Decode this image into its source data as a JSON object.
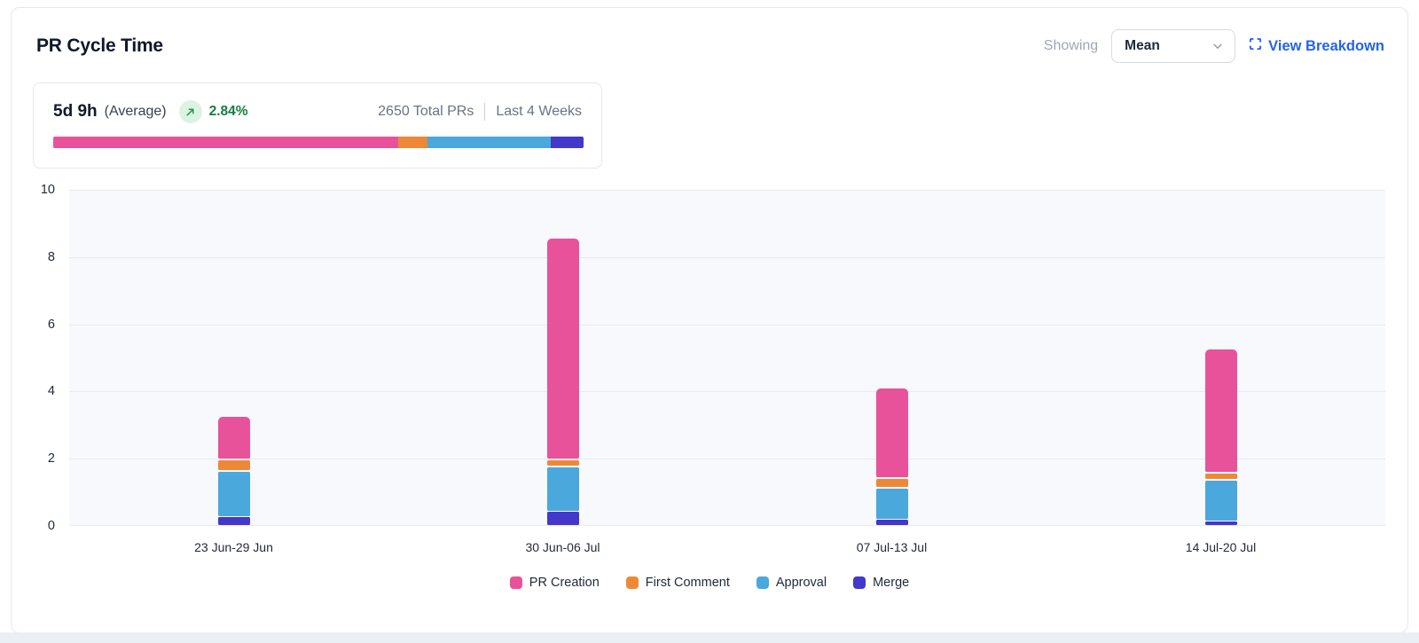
{
  "header": {
    "title": "PR Cycle Time",
    "showing_label": "Showing",
    "metric_select": {
      "value": "Mean"
    },
    "view_breakdown_label": "View Breakdown"
  },
  "summary": {
    "value": "5d 9h",
    "value_suffix": "(Average)",
    "trend_direction": "up",
    "trend_pct": "2.84%",
    "total_prs": "2650 Total PRs",
    "period": "Last 4 Weeks",
    "distribution_pct": [
      65,
      5.5,
      23.3,
      6.2
    ]
  },
  "colors": {
    "pr_creation": "#E8529A",
    "first_comment": "#ED8936",
    "approval": "#4AA8DC",
    "merge": "#4338CA",
    "trend_green": "#15803D",
    "trend_badge_bg": "#DCF3E2",
    "link_blue": "#2563EB",
    "plot_bg": "#F8F9FD",
    "gridline": "#E8EAF0"
  },
  "chart_data": {
    "type": "bar",
    "stacked": true,
    "title": "PR Cycle Time",
    "xlabel": "",
    "ylabel": "",
    "categories": [
      "23 Jun-29 Jun",
      "30 Jun-06 Jul",
      "07 Jul-13 Jul",
      "14 Jul-20 Jul"
    ],
    "series": [
      {
        "name": "PR Creation",
        "color": "#E8529A",
        "values": [
          1.3,
          6.6,
          2.7,
          3.7
        ]
      },
      {
        "name": "First Comment",
        "color": "#ED8936",
        "values": [
          0.35,
          0.2,
          0.3,
          0.2
        ]
      },
      {
        "name": "Approval",
        "color": "#4AA8DC",
        "values": [
          1.35,
          1.35,
          0.95,
          1.25
        ]
      },
      {
        "name": "Merge",
        "color": "#4338CA",
        "values": [
          0.3,
          0.45,
          0.2,
          0.15
        ]
      }
    ],
    "stack_order_bottom_to_top": [
      "Merge",
      "Approval",
      "First Comment",
      "PR Creation"
    ],
    "ylim": [
      0,
      10
    ],
    "yticks": [
      0,
      2,
      4,
      6,
      8,
      10
    ],
    "grid": true,
    "legend_position": "bottom"
  }
}
